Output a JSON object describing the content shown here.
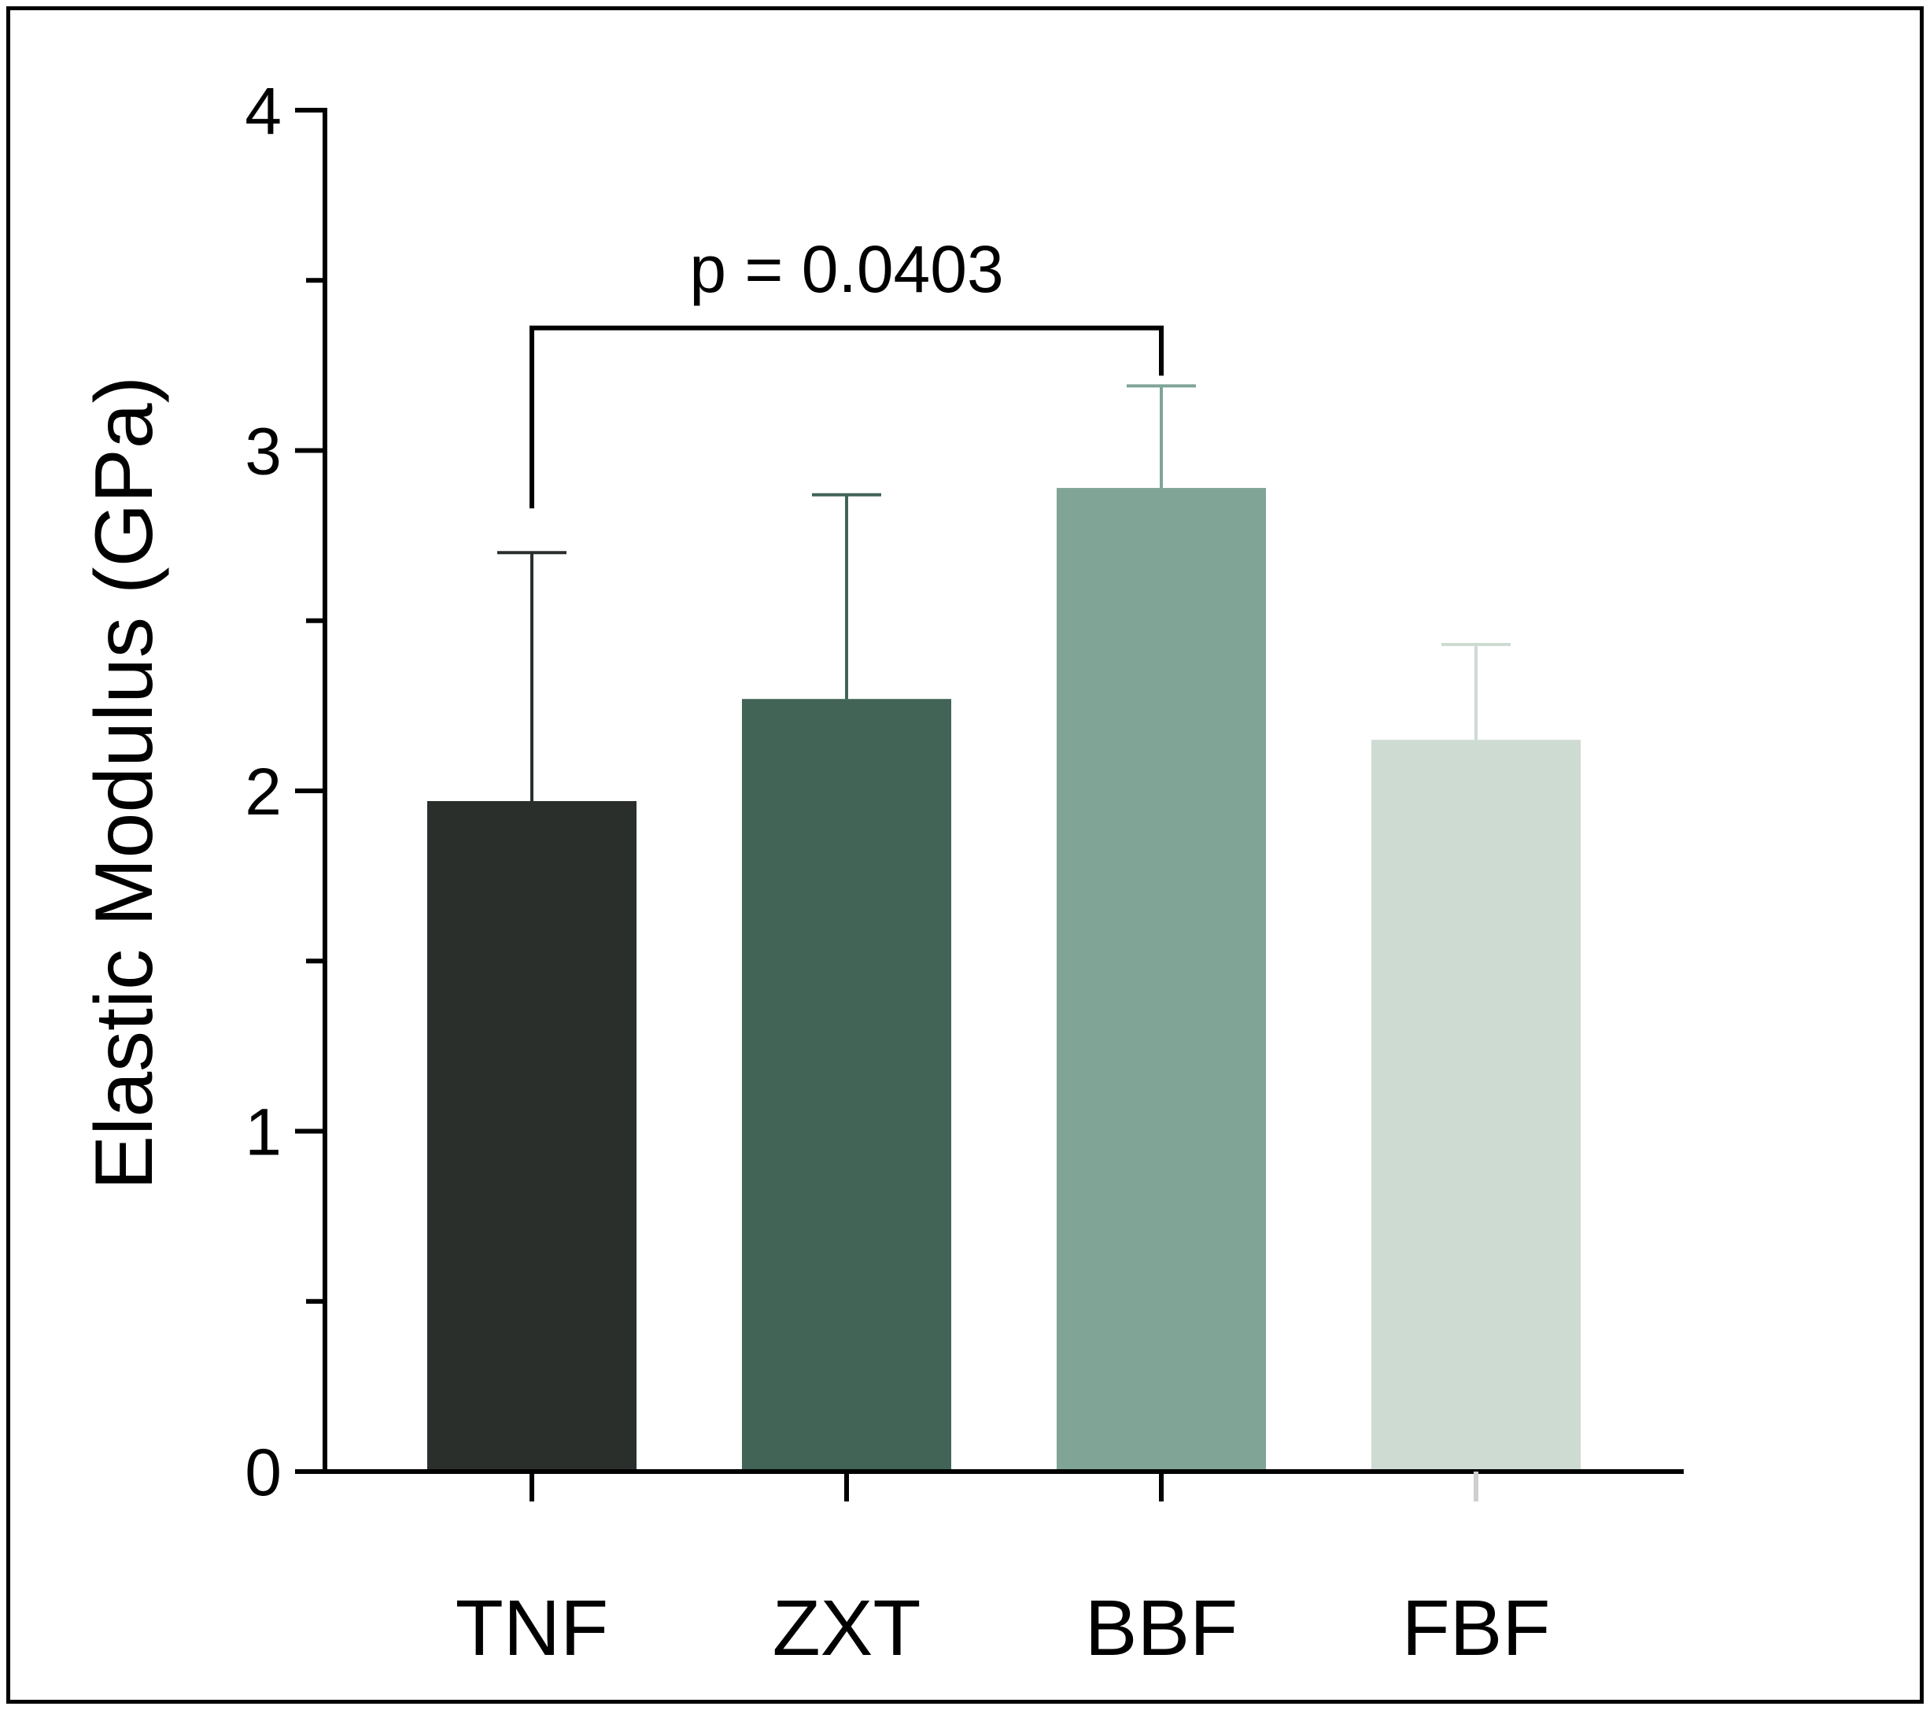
{
  "chart_data": {
    "type": "bar",
    "title": "",
    "xlabel": "",
    "ylabel": "Elastic Modulus (GPa)",
    "ylim": [
      0,
      4
    ],
    "yticks": [
      0,
      1,
      2,
      3,
      4
    ],
    "yticks_minor": [
      0.5,
      1.5,
      2.5,
      3.5
    ],
    "ytick_labels": [
      "0",
      "1",
      "2",
      "3",
      "4"
    ],
    "categories": [
      "TNF",
      "ZXT",
      "BBF",
      "FBF"
    ],
    "values": [
      1.97,
      2.27,
      2.89,
      2.15
    ],
    "errors": [
      0.73,
      0.6,
      0.3,
      0.28
    ],
    "colors": [
      "#2a2f2b",
      "#416457",
      "#80a496",
      "#cedbd3"
    ],
    "error_colors": [
      "#2a2f2b",
      "#416457",
      "#80a496",
      "#cedbd3"
    ],
    "annotations": [
      {
        "text": "p = 0.0403",
        "from_category": "TNF",
        "to_category": "BBF",
        "bracket_y": 3.36,
        "from_y": 2.83,
        "to_y": 3.22
      }
    ]
  }
}
